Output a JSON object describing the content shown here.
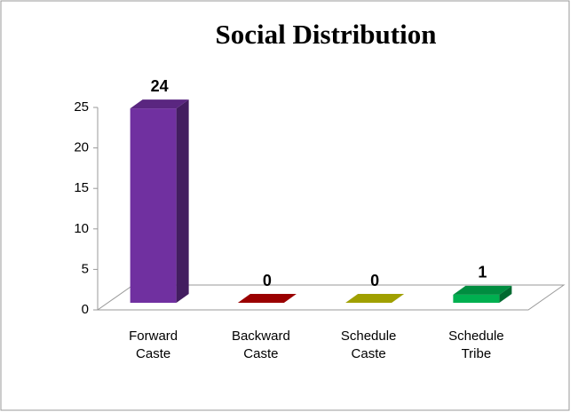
{
  "chart_data": {
    "type": "bar3d",
    "title": "Social Distribution",
    "categories": [
      "Forward Caste",
      "Backward Caste",
      "Schedule Caste",
      "Schedule Tribe"
    ],
    "values": [
      24,
      0,
      0,
      1
    ],
    "colors": [
      "#7030a0",
      "#c00000",
      "#c8c800",
      "#00b050"
    ],
    "ylim": [
      0,
      25
    ],
    "yticks": [
      0,
      5,
      10,
      15,
      20,
      25
    ]
  }
}
